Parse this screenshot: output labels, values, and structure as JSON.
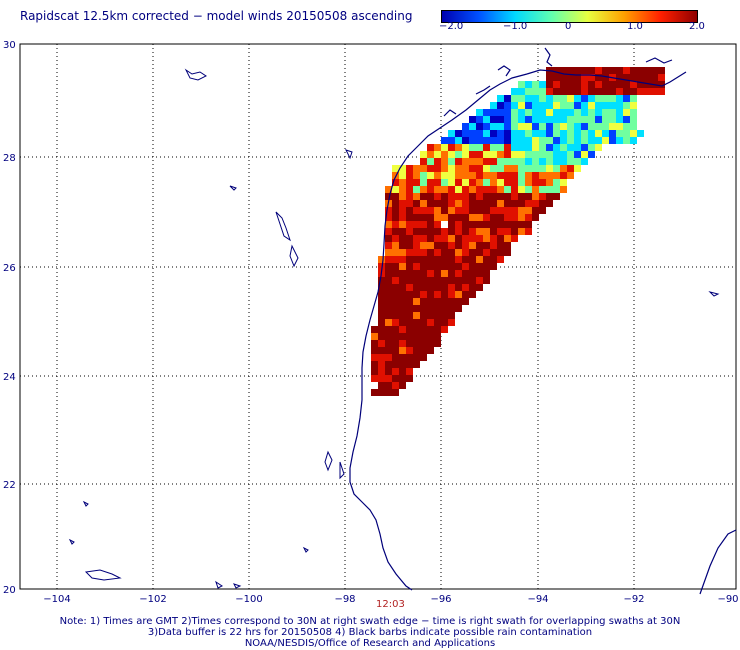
{
  "title": "Rapidscat 12.5km corrected − model winds 20150508 ascending",
  "colorbar": {
    "ticks": [
      "−2.0",
      "−1.0",
      "0",
      "1.0",
      "2.0"
    ],
    "colors": [
      "#0000b0",
      "#0050ff",
      "#00d8ff",
      "#60ffb0",
      "#e8ff40",
      "#ffa000",
      "#ff2000",
      "#900000"
    ]
  },
  "map": {
    "lat_labels": [
      "30",
      "28",
      "26",
      "24",
      "22",
      "20"
    ],
    "lon_labels": [
      "−104",
      "−102",
      "−100",
      "−98",
      "−96",
      "−94",
      "−92",
      "−90"
    ],
    "coast_color": "#00007a",
    "grid_color": "#000000"
  },
  "time_label": "12:03",
  "notes": [
    "Note: 1) Times are GMT 2)Times correspond to 30N at right swath edge − time is right swath for overlapping swaths at 30N",
    "3)Data buffer is 22 hrs for 20150508 4) Black barbs indicate possible rain contamination",
    "NOAA/NESDIS/Office of Research and Applications"
  ]
}
